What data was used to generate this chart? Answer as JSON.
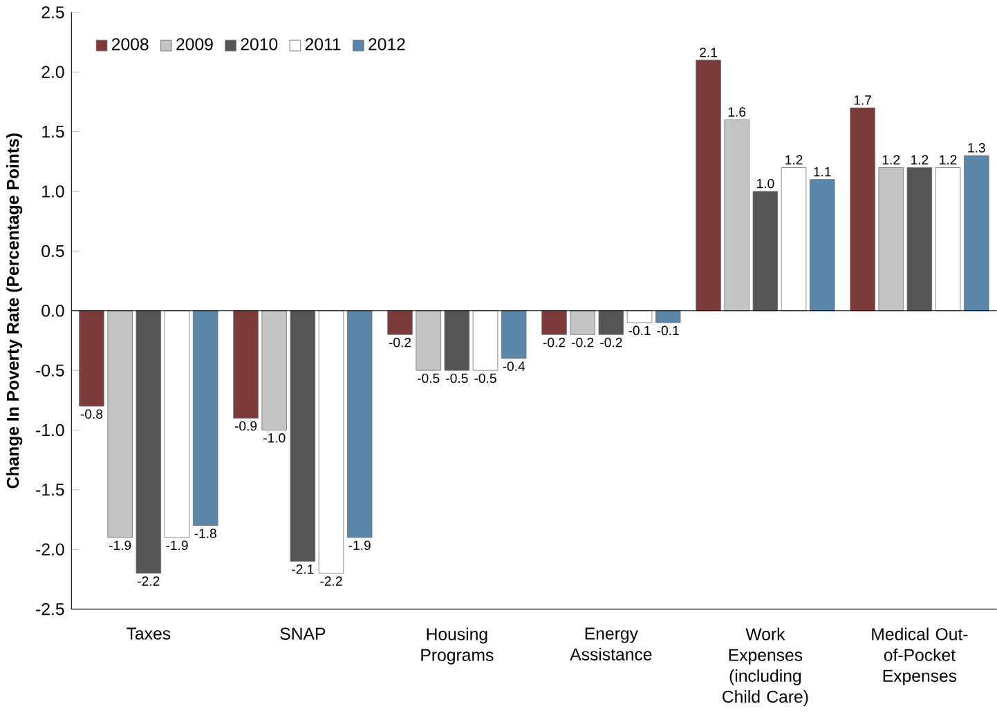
{
  "chart_data": {
    "type": "bar",
    "ylabel": "Change In Poverty Rate (Percentage Points)",
    "categories": [
      "Taxes",
      "SNAP",
      "Housing Programs",
      "Energy Assistance",
      "Work Expenses (including Child Care)",
      "Medical Out-of-Pocket Expenses"
    ],
    "series": [
      {
        "name": "2008",
        "color": "#7b3b3b",
        "values": [
          -0.8,
          -0.9,
          -0.2,
          -0.2,
          2.1,
          1.7
        ],
        "value_labels": [
          "-0.8",
          "-0.9",
          "-0.2",
          "-0.2",
          "2.1",
          "1.7"
        ]
      },
      {
        "name": "2009",
        "color": "#c4c4c4",
        "values": [
          -1.9,
          -1.0,
          -0.5,
          -0.2,
          1.6,
          1.2
        ],
        "value_labels": [
          "-1.9",
          "-1.0",
          "-0.5",
          "-0.2",
          "1.6",
          "1.2"
        ]
      },
      {
        "name": "2010",
        "color": "#555555",
        "values": [
          -2.2,
          -2.1,
          -0.5,
          -0.2,
          1.0,
          1.2
        ],
        "value_labels": [
          "-2.2",
          "-2.1",
          "-0.5",
          "-0.2",
          "1.0",
          "1.2"
        ]
      },
      {
        "name": "2011",
        "color": "#ffffff",
        "values": [
          -1.9,
          -2.2,
          -0.5,
          -0.1,
          1.2,
          1.2
        ],
        "value_labels": [
          "-1.9",
          "-2.2",
          "-0.5",
          "-0.1",
          "1.2",
          "1.2"
        ]
      },
      {
        "name": "2012",
        "color": "#5b86a8",
        "values": [
          -1.8,
          -1.9,
          -0.4,
          -0.1,
          1.1,
          1.3
        ],
        "value_labels": [
          "-1.8",
          "-1.9",
          "-0.4",
          "-0.1",
          "1.1",
          "1.3"
        ]
      }
    ],
    "ylim": [
      -2.5,
      2.5
    ],
    "yticks": [
      {
        "value": -2.5,
        "label": "-2.5"
      },
      {
        "value": -2.0,
        "label": "-2.0"
      },
      {
        "value": -1.5,
        "label": "-1.5"
      },
      {
        "value": -1.0,
        "label": "-1.0"
      },
      {
        "value": -0.5,
        "label": "-0.5"
      },
      {
        "value": 0.0,
        "label": "0.0"
      },
      {
        "value": 0.5,
        "label": "0.5"
      },
      {
        "value": 1.0,
        "label": "1.0"
      },
      {
        "value": 1.5,
        "label": "1.5"
      },
      {
        "value": 2.0,
        "label": "2.0"
      },
      {
        "value": 2.5,
        "label": "2.5"
      }
    ],
    "legend": "top left"
  }
}
